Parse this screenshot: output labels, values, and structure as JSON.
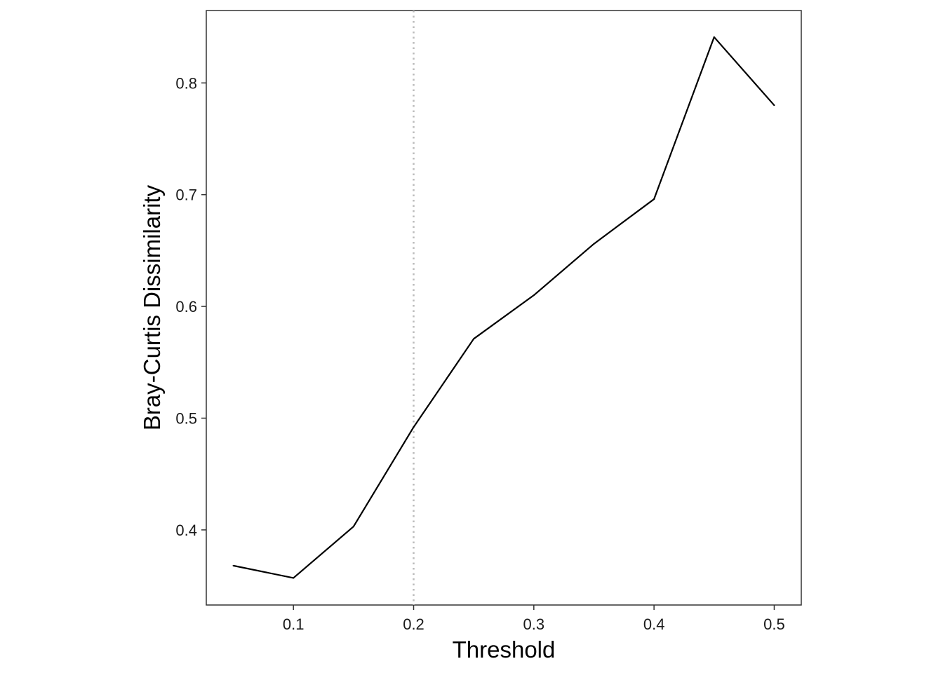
{
  "chart_data": {
    "type": "line",
    "title": "",
    "xlabel": "Threshold",
    "ylabel": "Bray-Curtis Dissimilarity",
    "x": [
      0.05,
      0.1,
      0.15,
      0.2,
      0.25,
      0.3,
      0.35,
      0.4,
      0.45,
      0.5
    ],
    "series": [
      {
        "values": [
          0.368,
          0.357,
          0.403,
          0.492,
          0.571,
          0.61,
          0.656,
          0.696,
          0.841,
          0.78
        ]
      }
    ],
    "xlim": [
      0.0275,
      0.5225
    ],
    "ylim": [
      0.3328,
      0.8648
    ],
    "xticks": [
      0.1,
      0.2,
      0.3,
      0.4,
      0.5
    ],
    "xtick_labels": [
      "0.1",
      "0.2",
      "0.3",
      "0.4",
      "0.5"
    ],
    "yticks": [
      0.4,
      0.5,
      0.6,
      0.7,
      0.8
    ],
    "ytick_labels": [
      "0.4",
      "0.5",
      "0.6",
      "0.7",
      "0.8"
    ],
    "reference_line": {
      "orientation": "vertical",
      "x": 0.2,
      "style": "dotted",
      "color": "#bbbbbb"
    },
    "line_color": "#000000",
    "grid": false,
    "legend": "none"
  }
}
